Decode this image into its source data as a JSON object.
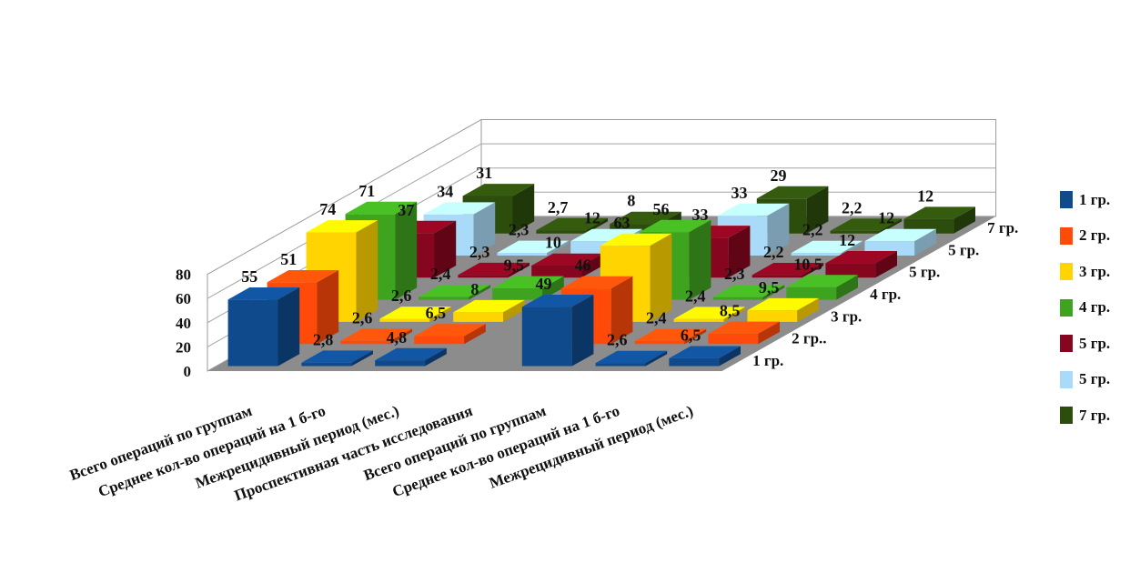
{
  "chart_data": {
    "type": "bar",
    "subtype": "3d-clustered",
    "title": "",
    "categories": [
      "Всего операций по группам",
      "Среднее кол-во операций на 1 б-го",
      "Межрецидивный период (мес.)",
      "Проспективная часть исследования",
      "Всего операций по группам",
      "Среднее кол-во операций на 1 б-го",
      "Межрецидивный период (мес.)"
    ],
    "depth_labels": [
      "1 гр.",
      "2 гр..",
      "3 гр.",
      "4 гр.",
      "5 гр.",
      "5 гр.",
      "7 гр."
    ],
    "series": [
      {
        "name": "1 гр.",
        "color": "#0f4a8c",
        "values": [
          55,
          2.8,
          4.8,
          null,
          49,
          2.6,
          6.5
        ]
      },
      {
        "name": "2 гр.",
        "color": "#ff4a0a",
        "values": [
          51,
          2.6,
          6.5,
          null,
          46,
          2.4,
          8.5
        ]
      },
      {
        "name": "3 гр.",
        "color": "#ffd400",
        "values": [
          74,
          2.6,
          8,
          null,
          63,
          2.4,
          9.5
        ]
      },
      {
        "name": "4 гр.",
        "color": "#3ea31e",
        "values": [
          71,
          2.4,
          9.5,
          null,
          56,
          2.3,
          10.5
        ]
      },
      {
        "name": "5 гр.",
        "color": "#85061e",
        "values": [
          37,
          2.3,
          10,
          null,
          33,
          2.2,
          12
        ]
      },
      {
        "name": "5 гр.",
        "color": "#a9daf7",
        "values": [
          34,
          2.3,
          12,
          null,
          33,
          2.2,
          12
        ]
      },
      {
        "name": "7 гр.",
        "color": "#2d4d0c",
        "values": [
          31,
          2.7,
          8,
          null,
          29,
          2.2,
          12
        ]
      }
    ],
    "y_ticks": [
      "0",
      "20",
      "40",
      "60",
      "80"
    ],
    "ylim": [
      0,
      80
    ],
    "grid": true,
    "legend_position": "right"
  }
}
